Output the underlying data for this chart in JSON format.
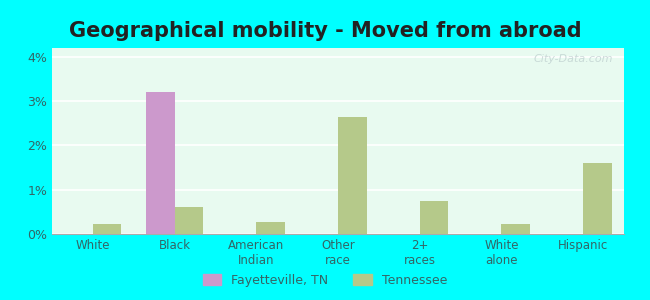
{
  "title": "Geographical mobility - Moved from abroad",
  "categories": [
    "White",
    "Black",
    "American\nIndian",
    "Other\nrace",
    "2+\nraces",
    "White\nalone",
    "Hispanic"
  ],
  "fayetteville_values": [
    0.0,
    3.2,
    0.0,
    0.0,
    0.0,
    0.0,
    0.0
  ],
  "tennessee_values": [
    0.22,
    0.6,
    0.28,
    2.65,
    0.75,
    0.22,
    1.6
  ],
  "fayetteville_color": "#cc99cc",
  "tennessee_color": "#b5c98a",
  "ylim": [
    0,
    4.2
  ],
  "yticks": [
    0,
    1,
    2,
    3,
    4
  ],
  "ytick_labels": [
    "0%",
    "1%",
    "2%",
    "3%",
    "4%"
  ],
  "bar_width": 0.35,
  "bg_color": "#e8faf0",
  "outer_bg": "#00ffff",
  "legend_fayetteville": "Fayetteville, TN",
  "legend_tennessee": "Tennessee",
  "title_fontsize": 15,
  "watermark_text": "City-Data.com"
}
